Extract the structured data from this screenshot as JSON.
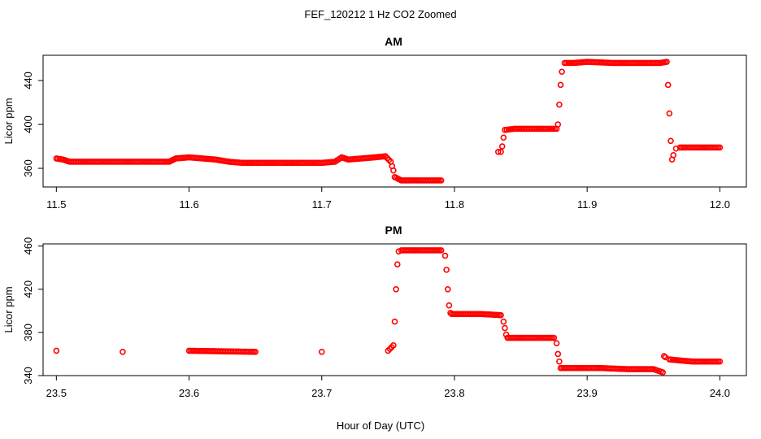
{
  "figure": {
    "title": "FEF_120212  1 Hz CO2 Zoomed",
    "xlabel": "Hour of Day (UTC)"
  },
  "colors": {
    "points": "#ff0000",
    "axis": "#000000"
  },
  "chart_data": [
    {
      "type": "scatter",
      "title": "AM",
      "xlabel": "Hour of Day (UTC)",
      "ylabel": "Licor ppm",
      "xlim": [
        11.49,
        12.02
      ],
      "ylim": [
        343,
        463
      ],
      "xticks": [
        11.5,
        11.6,
        11.7,
        11.8,
        11.9,
        12.0
      ],
      "xtick_labels": [
        "11.5",
        "11.6",
        "11.7",
        "11.8",
        "11.9",
        "12.0"
      ],
      "yticks": [
        360,
        400,
        440
      ],
      "ytick_labels": [
        "360",
        "400",
        "440"
      ],
      "grid": false,
      "series": [
        {
          "marker": "open-circle",
          "x": [
            11.5,
            11.505,
            11.51,
            11.53,
            11.55,
            11.57,
            11.585,
            11.59,
            11.6,
            11.62,
            11.63,
            11.64,
            11.66,
            11.68,
            11.7,
            11.71,
            11.715,
            11.72,
            11.73,
            11.74,
            11.748,
            11.752,
            11.753,
            11.754,
            11.755,
            11.76,
            11.77,
            11.78,
            11.79,
            11.833,
            11.835,
            11.836,
            11.837,
            11.838,
            11.845,
            11.86,
            11.87,
            11.877,
            11.878,
            11.879,
            11.88,
            11.881,
            11.883,
            11.89,
            11.9,
            11.92,
            11.94,
            11.955,
            11.96,
            11.961,
            11.962,
            11.963,
            11.964,
            11.965,
            11.967,
            11.97,
            11.98,
            11.99,
            12.0
          ],
          "y": [
            369,
            368,
            366,
            366,
            366,
            366,
            366,
            369,
            370,
            368,
            366,
            365,
            365,
            365,
            365,
            366,
            370,
            368,
            369,
            370,
            371,
            366,
            362,
            358,
            352,
            349,
            349,
            349,
            349,
            375,
            375,
            380,
            388,
            395,
            396,
            396,
            396,
            396,
            400,
            418,
            436,
            448,
            456,
            456,
            457,
            456,
            456,
            456,
            457,
            436,
            410,
            385,
            368,
            372,
            378,
            379,
            379,
            379,
            379
          ]
        }
      ]
    },
    {
      "type": "scatter",
      "title": "PM",
      "xlabel": "Hour of Day (UTC)",
      "ylabel": "Licor ppm",
      "xlim": [
        23.49,
        24.02
      ],
      "ylim": [
        340,
        462
      ],
      "xticks": [
        23.5,
        23.6,
        23.7,
        23.8,
        23.9,
        24.0
      ],
      "xtick_labels": [
        "23.5",
        "23.6",
        "23.7",
        "23.8",
        "23.9",
        "24.0"
      ],
      "yticks": [
        340,
        380,
        420,
        460
      ],
      "ytick_labels": [
        "340",
        "380",
        "420",
        "460"
      ],
      "grid": false,
      "series": [
        {
          "marker": "open-circle",
          "x": [
            23.5,
            23.55,
            23.6,
            23.65,
            23.7,
            23.75,
            23.754,
            23.755,
            23.756,
            23.757,
            23.758,
            23.76,
            23.77,
            23.78,
            23.79,
            23.793,
            23.794,
            23.795,
            23.796,
            23.797,
            23.798,
            23.81,
            23.82,
            23.835,
            23.837,
            23.838,
            23.839,
            23.84,
            23.85,
            23.86,
            23.875,
            23.877,
            23.878,
            23.879,
            23.88,
            23.89,
            23.91,
            23.93,
            23.95,
            23.957,
            23.958,
            23.959,
            23.962,
            23.97,
            23.98,
            23.99,
            24.0
          ],
          "y": [
            363,
            362,
            363,
            362,
            362,
            363,
            368,
            390,
            420,
            443,
            455,
            456,
            456,
            456,
            456,
            451,
            438,
            420,
            405,
            398,
            397,
            397,
            397,
            396,
            390,
            384,
            378,
            375,
            375,
            375,
            375,
            370,
            360,
            353,
            347,
            347,
            347,
            346,
            346,
            343,
            358,
            357,
            355,
            354,
            353,
            353,
            353
          ]
        }
      ]
    }
  ]
}
